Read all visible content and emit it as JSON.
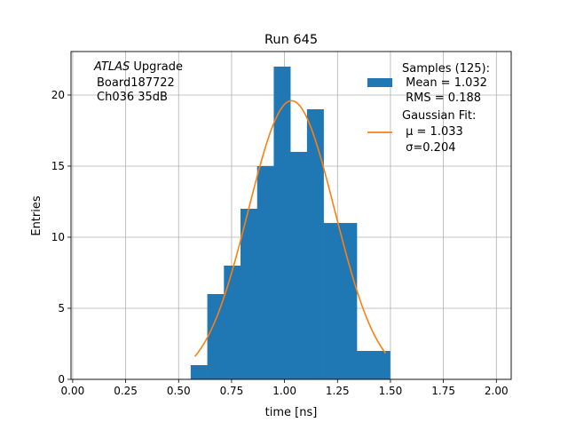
{
  "chart_data": {
    "type": "bar",
    "title": "Run 645",
    "xlabel": "time [ns]",
    "ylabel": "Entries",
    "xlim": [
      -0.008,
      2.07
    ],
    "ylim": [
      0,
      23.06
    ],
    "grid": true,
    "xticks": [
      "0.00",
      "0.25",
      "0.50",
      "0.75",
      "1.00",
      "1.25",
      "1.50",
      "1.75",
      "2.00"
    ],
    "xtick_values": [
      0,
      0.25,
      0.5,
      0.75,
      1.0,
      1.25,
      1.5,
      1.75,
      2.0
    ],
    "yticks": [
      "0",
      "5",
      "10",
      "15",
      "20"
    ],
    "ytick_values": [
      0,
      5,
      10,
      15,
      20
    ],
    "histogram": {
      "bin_start": 0.557,
      "bin_end": 1.498,
      "counts": [
        1,
        6,
        8,
        12,
        15,
        22,
        16,
        19,
        11,
        11,
        2,
        2
      ],
      "color": "#1f77b4"
    },
    "fit": {
      "type": "gaussian",
      "amplitude": 19.6,
      "mu": 1.033,
      "sigma": 0.204,
      "x_range": [
        0.577,
        1.477
      ],
      "color": "#ff7f0e"
    },
    "annotation": {
      "line1_italic": "ATLAS",
      "line1_rest": " Upgrade",
      "line2": "Board187722",
      "line3": "Ch036 35dB"
    },
    "legend": {
      "placement": "top-right",
      "hist_lines": [
        "Samples (125):",
        " Mean = 1.032",
        " RMS = 0.188"
      ],
      "fit_lines": [
        "Gaussian Fit:",
        " μ = 1.033",
        " σ=0.204"
      ]
    }
  }
}
